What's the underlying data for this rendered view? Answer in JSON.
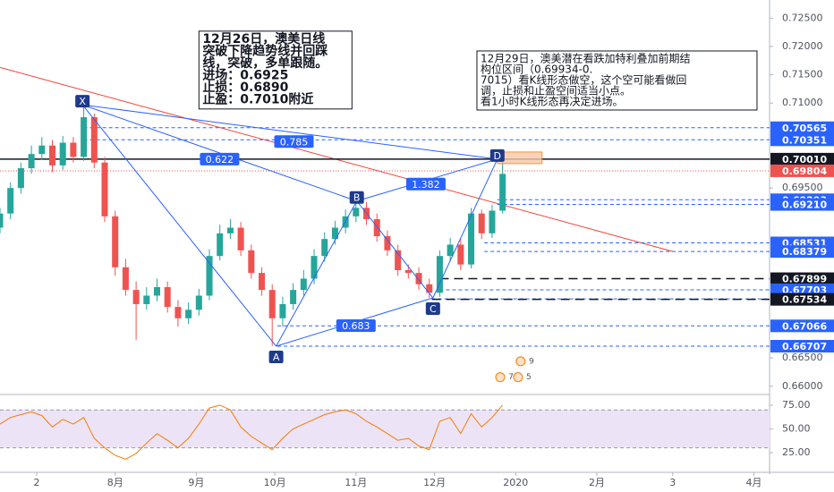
{
  "chart_data": [
    {
      "type": "candlestick",
      "x": [
        -12,
        -8,
        -4,
        0,
        4,
        8,
        12,
        16,
        20,
        24,
        28,
        32,
        36,
        40,
        44,
        48,
        52,
        56,
        60,
        64,
        68,
        72,
        76,
        80,
        84,
        88,
        92,
        96,
        100,
        104,
        108,
        112,
        116,
        120,
        124,
        128,
        132,
        136,
        140,
        144,
        148,
        152,
        156,
        160,
        164,
        168,
        172,
        176,
        180
      ],
      "open": [
        0.688,
        0.6905,
        0.695,
        0.6985,
        0.701,
        0.7025,
        0.699,
        0.703,
        0.7005,
        0.7075,
        0.6995,
        0.69,
        0.681,
        0.677,
        0.6745,
        0.676,
        0.6775,
        0.674,
        0.672,
        0.6735,
        0.676,
        0.683,
        0.687,
        0.688,
        0.684,
        0.68,
        0.677,
        0.672,
        0.6745,
        0.677,
        0.679,
        0.683,
        0.686,
        0.688,
        0.69,
        0.6915,
        0.6895,
        0.6865,
        0.684,
        0.6805,
        0.68,
        0.678,
        0.6765,
        0.683,
        0.685,
        0.6815,
        0.6905,
        0.687,
        0.691
      ],
      "high": [
        0.6915,
        0.696,
        0.6995,
        0.7025,
        0.704,
        0.7035,
        0.7042,
        0.704,
        0.7097,
        0.7082,
        0.7005,
        0.691,
        0.6825,
        0.6785,
        0.6775,
        0.679,
        0.6785,
        0.6752,
        0.6748,
        0.6772,
        0.6842,
        0.6885,
        0.6895,
        0.689,
        0.685,
        0.681,
        0.678,
        0.6758,
        0.6782,
        0.6805,
        0.6842,
        0.6872,
        0.6892,
        0.6912,
        0.6927,
        0.6925,
        0.6905,
        0.6875,
        0.685,
        0.6815,
        0.681,
        0.679,
        0.684,
        0.6862,
        0.686,
        0.6915,
        0.6912,
        0.692,
        0.7005
      ],
      "low": [
        0.687,
        0.6895,
        0.694,
        0.6975,
        0.7,
        0.6978,
        0.6982,
        0.6995,
        0.6998,
        0.6985,
        0.689,
        0.6795,
        0.676,
        0.6682,
        0.6735,
        0.675,
        0.673,
        0.6705,
        0.671,
        0.6725,
        0.6752,
        0.6822,
        0.686,
        0.683,
        0.679,
        0.676,
        0.6671,
        0.6705,
        0.6735,
        0.676,
        0.678,
        0.682,
        0.685,
        0.687,
        0.689,
        0.6885,
        0.6855,
        0.683,
        0.6795,
        0.679,
        0.677,
        0.6756,
        0.6758,
        0.682,
        0.6805,
        0.6808,
        0.686,
        0.6862,
        0.6905
      ],
      "close": [
        0.6905,
        0.695,
        0.6985,
        0.701,
        0.7025,
        0.699,
        0.703,
        0.7005,
        0.7075,
        0.6995,
        0.69,
        0.681,
        0.677,
        0.6745,
        0.676,
        0.6775,
        0.674,
        0.672,
        0.6735,
        0.676,
        0.683,
        0.687,
        0.688,
        0.684,
        0.68,
        0.677,
        0.672,
        0.6745,
        0.677,
        0.679,
        0.683,
        0.686,
        0.688,
        0.69,
        0.6915,
        0.6895,
        0.6865,
        0.684,
        0.6805,
        0.68,
        0.678,
        0.6765,
        0.683,
        0.685,
        0.6815,
        0.6905,
        0.687,
        0.691,
        0.6975
      ],
      "up_color": "#26a69a",
      "down_color": "#ef5350",
      "xlim": [
        -12,
        282
      ],
      "xticks": [
        {
          "value": 2,
          "label": "2"
        },
        {
          "value": 32,
          "label": "8月"
        },
        {
          "value": 63,
          "label": "9月"
        },
        {
          "value": 93,
          "label": "10月"
        },
        {
          "value": 124,
          "label": "11月"
        },
        {
          "value": 154,
          "label": "12月"
        },
        {
          "value": 185,
          "label": "2020"
        },
        {
          "value": 216,
          "label": "2月"
        },
        {
          "value": 245,
          "label": "3"
        },
        {
          "value": 276,
          "label": "4月"
        }
      ],
      "ylim": [
        0.6587,
        0.7282
      ],
      "yticks": [
        {
          "value": 0.725,
          "label": "0.72500"
        },
        {
          "value": 0.72,
          "label": "0.72000"
        },
        {
          "value": 0.715,
          "label": "0.71500"
        },
        {
          "value": 0.71,
          "label": "0.71000"
        },
        {
          "value": 0.695,
          "label": "0.69500"
        },
        {
          "value": 0.665,
          "label": "0.66500"
        },
        {
          "value": 0.66,
          "label": "0.66000"
        }
      ],
      "grid": false,
      "levels": [
        {
          "value": 0.70565,
          "label": "0.70565",
          "color": "#2962ff",
          "style": "dash",
          "x0": 20
        },
        {
          "value": 0.70351,
          "label": "0.70351",
          "color": "#2962ff",
          "style": "dash",
          "x0": 20
        },
        {
          "value": 0.7001,
          "label": "0.70010",
          "color": "#131722",
          "style": "solid",
          "x0": -12
        },
        {
          "value": 0.69804,
          "label": "0.69804",
          "color": "#ef5350",
          "style": "dot",
          "x0": -12
        },
        {
          "value": 0.69293,
          "label": "0.69293",
          "color": "#2962ff",
          "style": "dash",
          "x0": 178
        },
        {
          "value": 0.6921,
          "label": "0.69210",
          "color": "#2962ff",
          "style": "dash",
          "x0": 178
        },
        {
          "value": 0.68531,
          "label": "0.68531",
          "color": "#2962ff",
          "style": "dash",
          "x0": 173
        },
        {
          "value": 0.68379,
          "label": "0.68379",
          "color": "#2962ff",
          "style": "dash",
          "x0": 173
        },
        {
          "value": 0.67899,
          "label": "0.67899",
          "color": "#131722",
          "style": "long",
          "x0": 156
        },
        {
          "value": 0.67703,
          "label": "0.67703",
          "color": "#2962ff",
          "style": "dash",
          "x0": 156
        },
        {
          "value": 0.67542,
          "label": "0.67542",
          "color": "#2962ff",
          "style": "dash",
          "x0": 153
        },
        {
          "value": 0.67534,
          "label": "0.67534",
          "color": "#131722",
          "style": "long",
          "x0": 153
        },
        {
          "value": 0.67066,
          "label": "0.67066",
          "color": "#2962ff",
          "style": "dash",
          "x0": 94
        },
        {
          "value": 0.66707,
          "label": "0.66707",
          "color": "#2962ff",
          "style": "dash",
          "x0": 94
        }
      ],
      "trendline": {
        "color": "#f44336",
        "x": [
          -12,
          245
        ],
        "y": [
          0.7163,
          0.6838
        ]
      },
      "pattern": {
        "color": "#2962ff",
        "points": [
          {
            "label": "X",
            "x": 19.5,
            "y": 0.7097
          },
          {
            "label": "A",
            "x": 93.5,
            "y": 0.66707
          },
          {
            "label": "B",
            "x": 124.3,
            "y": 0.6927
          },
          {
            "label": "C",
            "x": 153.4,
            "y": 0.6756
          },
          {
            "label": "D",
            "x": 178,
            "y": 0.7001
          }
        ],
        "ratios": [
          {
            "label": "0.785",
            "x": 100.3,
            "y": 0.7032
          },
          {
            "label": "0.622",
            "x": 71.9,
            "y": 0.7001
          },
          {
            "label": "1.382",
            "x": 150.7,
            "y": 0.6957
          },
          {
            "label": "0.683",
            "x": 124,
            "y": 0.6707
          }
        ]
      },
      "annotations": [
        {
          "x": 64,
          "y": 0.7227,
          "style": "bold",
          "lines": [
            "12月26日，澳美日线",
            "突破下降趋势线并回踩",
            "线，突破，多单跟随。",
            "进场：0.6925",
            "止损：0.6890",
            "止盈：0.7010附近"
          ]
        },
        {
          "x": 170.2,
          "y": 0.7192,
          "style": "normal",
          "lines": [
            "12月29日，澳美潜在看跌加特利叠加前期结",
            "构位区间（0.69934-0.",
            "7015）看K线形态做空，这个空可能看做回",
            "调，止损和止盈空间适当小点。",
            "看1小时K线形态再决定进场。"
          ]
        }
      ],
      "markers": [
        {
          "label": "9",
          "x": 191,
          "y": 0.6644
        },
        {
          "label": "7",
          "x": 183.2,
          "y": 0.6616
        },
        {
          "label": "5",
          "x": 190,
          "y": 0.6616
        }
      ]
    },
    {
      "type": "line",
      "x": [
        -12,
        -8,
        -4,
        0,
        4,
        8,
        12,
        16,
        20,
        24,
        28,
        32,
        36,
        40,
        44,
        48,
        52,
        56,
        60,
        64,
        68,
        72,
        76,
        80,
        84,
        88,
        92,
        96,
        100,
        104,
        108,
        112,
        116,
        120,
        124,
        128,
        132,
        136,
        140,
        144,
        148,
        152,
        156,
        160,
        164,
        168,
        172,
        176,
        180
      ],
      "values": [
        55,
        62,
        65,
        68,
        64,
        52,
        60,
        55,
        62,
        40,
        30,
        22,
        18,
        24,
        35,
        45,
        38,
        30,
        40,
        55,
        72,
        75,
        70,
        52,
        42,
        35,
        28,
        40,
        50,
        55,
        60,
        65,
        68,
        70,
        66,
        58,
        52,
        45,
        38,
        40,
        32,
        28,
        58,
        62,
        45,
        66,
        52,
        62,
        75
      ],
      "color": "#f57c00",
      "band": [
        30,
        70
      ],
      "ylim": [
        7,
        82.5
      ],
      "yticks": [
        {
          "value": 75,
          "label": "75.00"
        },
        {
          "value": 50,
          "label": "50.00"
        },
        {
          "value": 25,
          "label": "25.00"
        }
      ]
    }
  ]
}
